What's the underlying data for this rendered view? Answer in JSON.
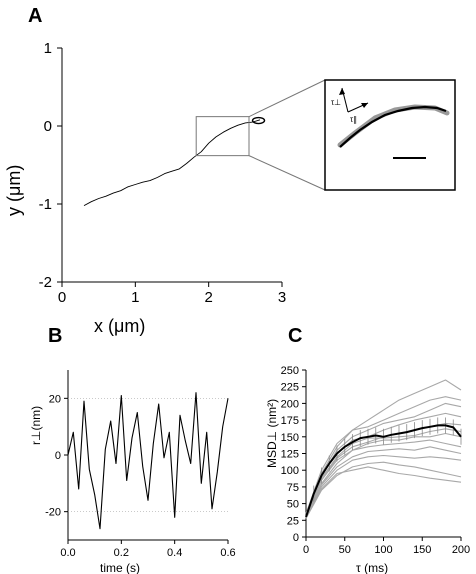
{
  "chart_data": [
    {
      "panel": "A",
      "type": "line",
      "xlabel": "x (μm)",
      "ylabel": "y (μm)",
      "xlim": [
        0,
        3
      ],
      "ylim": [
        -2,
        1
      ],
      "xticks": [
        0,
        1,
        2,
        3
      ],
      "yticks": [
        -2,
        -1,
        0,
        1
      ],
      "grid": false,
      "series": [
        {
          "x": [
            0.3,
            0.4,
            0.5,
            0.6,
            0.7,
            0.8,
            0.9,
            1.0,
            1.1,
            1.2,
            1.3,
            1.4,
            1.5,
            1.6,
            1.7,
            1.8,
            1.9,
            2.0,
            2.1,
            2.2,
            2.3,
            2.4,
            2.5,
            2.6,
            2.7
          ],
          "y": [
            -1.02,
            -0.97,
            -0.93,
            -0.9,
            -0.86,
            -0.83,
            -0.78,
            -0.75,
            -0.72,
            -0.7,
            -0.66,
            -0.61,
            -0.58,
            -0.55,
            -0.48,
            -0.4,
            -0.33,
            -0.22,
            -0.14,
            -0.08,
            -0.03,
            0.01,
            0.04,
            0.05,
            0.08
          ]
        }
      ],
      "zoom_box": {
        "x": [
          1.83,
          2.55
        ],
        "y": [
          -0.38,
          0.12
        ]
      },
      "inset": {
        "labels": [
          "τ⊥",
          "τ∥"
        ],
        "has_scale_bar": true
      }
    },
    {
      "panel": "B",
      "type": "line",
      "xlabel": "time (s)",
      "ylabel": "r⊥(nm)",
      "xlim": [
        0,
        0.6
      ],
      "ylim": [
        -30,
        30
      ],
      "xticks": [
        "0.0",
        "0.2",
        "0.4",
        "0.6"
      ],
      "yticks": [
        "-20",
        "0",
        "20"
      ],
      "grid": "dotted at ±20",
      "series": [
        {
          "x": [
            0.0,
            0.02,
            0.04,
            0.06,
            0.08,
            0.1,
            0.12,
            0.14,
            0.16,
            0.18,
            0.2,
            0.22,
            0.24,
            0.26,
            0.28,
            0.3,
            0.32,
            0.34,
            0.36,
            0.38,
            0.4,
            0.42,
            0.44,
            0.46,
            0.48,
            0.5,
            0.52,
            0.54,
            0.56,
            0.58,
            0.6
          ],
          "y": [
            0,
            8,
            -12,
            19,
            -5,
            -14,
            -26,
            2,
            12,
            -3,
            21,
            -9,
            6,
            15,
            -4,
            -16,
            4,
            18,
            -1,
            8,
            -22,
            14,
            5,
            -3,
            22,
            -10,
            8,
            -19,
            -6,
            10,
            20
          ]
        }
      ]
    },
    {
      "panel": "C",
      "type": "line",
      "xlabel": "τ (ms)",
      "ylabel": "MSD⊥ (nm²)",
      "xlim": [
        0,
        200
      ],
      "ylim": [
        0,
        250
      ],
      "xticks": [
        0,
        50,
        100,
        150,
        200
      ],
      "yticks": [
        0,
        25,
        50,
        75,
        100,
        125,
        150,
        175,
        200,
        225,
        250
      ],
      "grid": false,
      "series": [
        {
          "name_hidden": true,
          "role": "mean",
          "x": [
            0,
            10,
            20,
            30,
            40,
            50,
            60,
            70,
            80,
            90,
            100,
            110,
            120,
            130,
            140,
            150,
            160,
            170,
            180,
            190,
            200
          ],
          "y": [
            30,
            65,
            92,
            110,
            125,
            135,
            142,
            148,
            150,
            152,
            150,
            153,
            155,
            157,
            160,
            163,
            165,
            167,
            167,
            164,
            150
          ]
        },
        {
          "role": "individual",
          "x": [
            0,
            20,
            40,
            60,
            80,
            100,
            120,
            140,
            160,
            180,
            200
          ],
          "y": [
            30,
            95,
            135,
            160,
            175,
            190,
            205,
            215,
            225,
            235,
            220
          ]
        },
        {
          "role": "individual",
          "x": [
            0,
            20,
            40,
            60,
            80,
            100,
            120,
            140,
            160,
            180,
            200
          ],
          "y": [
            35,
            100,
            140,
            160,
            165,
            175,
            185,
            195,
            205,
            210,
            205
          ]
        },
        {
          "role": "individual",
          "x": [
            0,
            20,
            40,
            60,
            80,
            100,
            120,
            140,
            160,
            180,
            200
          ],
          "y": [
            30,
            90,
            130,
            150,
            160,
            170,
            175,
            180,
            190,
            200,
            195
          ]
        },
        {
          "role": "individual",
          "x": [
            0,
            20,
            40,
            60,
            80,
            100,
            120,
            140,
            160,
            180,
            200
          ],
          "y": [
            35,
            95,
            125,
            145,
            150,
            160,
            168,
            175,
            180,
            185,
            180
          ]
        },
        {
          "role": "individual",
          "x": [
            0,
            20,
            40,
            60,
            80,
            100,
            120,
            140,
            160,
            180,
            200
          ],
          "y": [
            30,
            85,
            118,
            135,
            142,
            150,
            155,
            160,
            165,
            170,
            168
          ]
        },
        {
          "role": "individual",
          "x": [
            0,
            20,
            40,
            60,
            80,
            100,
            120,
            140,
            160,
            180,
            200
          ],
          "y": [
            30,
            88,
            120,
            140,
            148,
            148,
            150,
            152,
            158,
            162,
            158
          ]
        },
        {
          "role": "individual",
          "x": [
            0,
            20,
            40,
            60,
            80,
            100,
            120,
            140,
            160,
            180,
            200
          ],
          "y": [
            28,
            80,
            110,
            130,
            140,
            145,
            145,
            150,
            150,
            155,
            150
          ]
        },
        {
          "role": "individual",
          "x": [
            0,
            20,
            40,
            60,
            80,
            100,
            120,
            140,
            160,
            180,
            200
          ],
          "y": [
            30,
            85,
            115,
            130,
            135,
            138,
            140,
            142,
            145,
            140,
            135
          ]
        },
        {
          "role": "individual",
          "x": [
            0,
            20,
            40,
            60,
            80,
            100,
            120,
            140,
            160,
            180,
            200
          ],
          "y": [
            32,
            78,
            105,
            120,
            128,
            130,
            132,
            130,
            135,
            130,
            125
          ]
        },
        {
          "role": "individual",
          "x": [
            0,
            20,
            40,
            60,
            80,
            100,
            120,
            140,
            160,
            180,
            200
          ],
          "y": [
            30,
            75,
            100,
            115,
            120,
            122,
            120,
            118,
            120,
            118,
            115
          ]
        },
        {
          "role": "individual",
          "x": [
            0,
            20,
            40,
            60,
            80,
            100,
            120,
            140,
            160,
            180,
            200
          ],
          "y": [
            28,
            70,
            92,
            105,
            110,
            112,
            108,
            105,
            100,
            95,
            90
          ]
        },
        {
          "role": "individual",
          "x": [
            0,
            20,
            40,
            60,
            80,
            100,
            120,
            140,
            160,
            180,
            200
          ],
          "y": [
            30,
            72,
            95,
            100,
            105,
            100,
            95,
            92,
            88,
            85,
            82
          ]
        }
      ]
    }
  ],
  "labels": {
    "panel_a": "A",
    "panel_b": "B",
    "panel_c": "C"
  }
}
